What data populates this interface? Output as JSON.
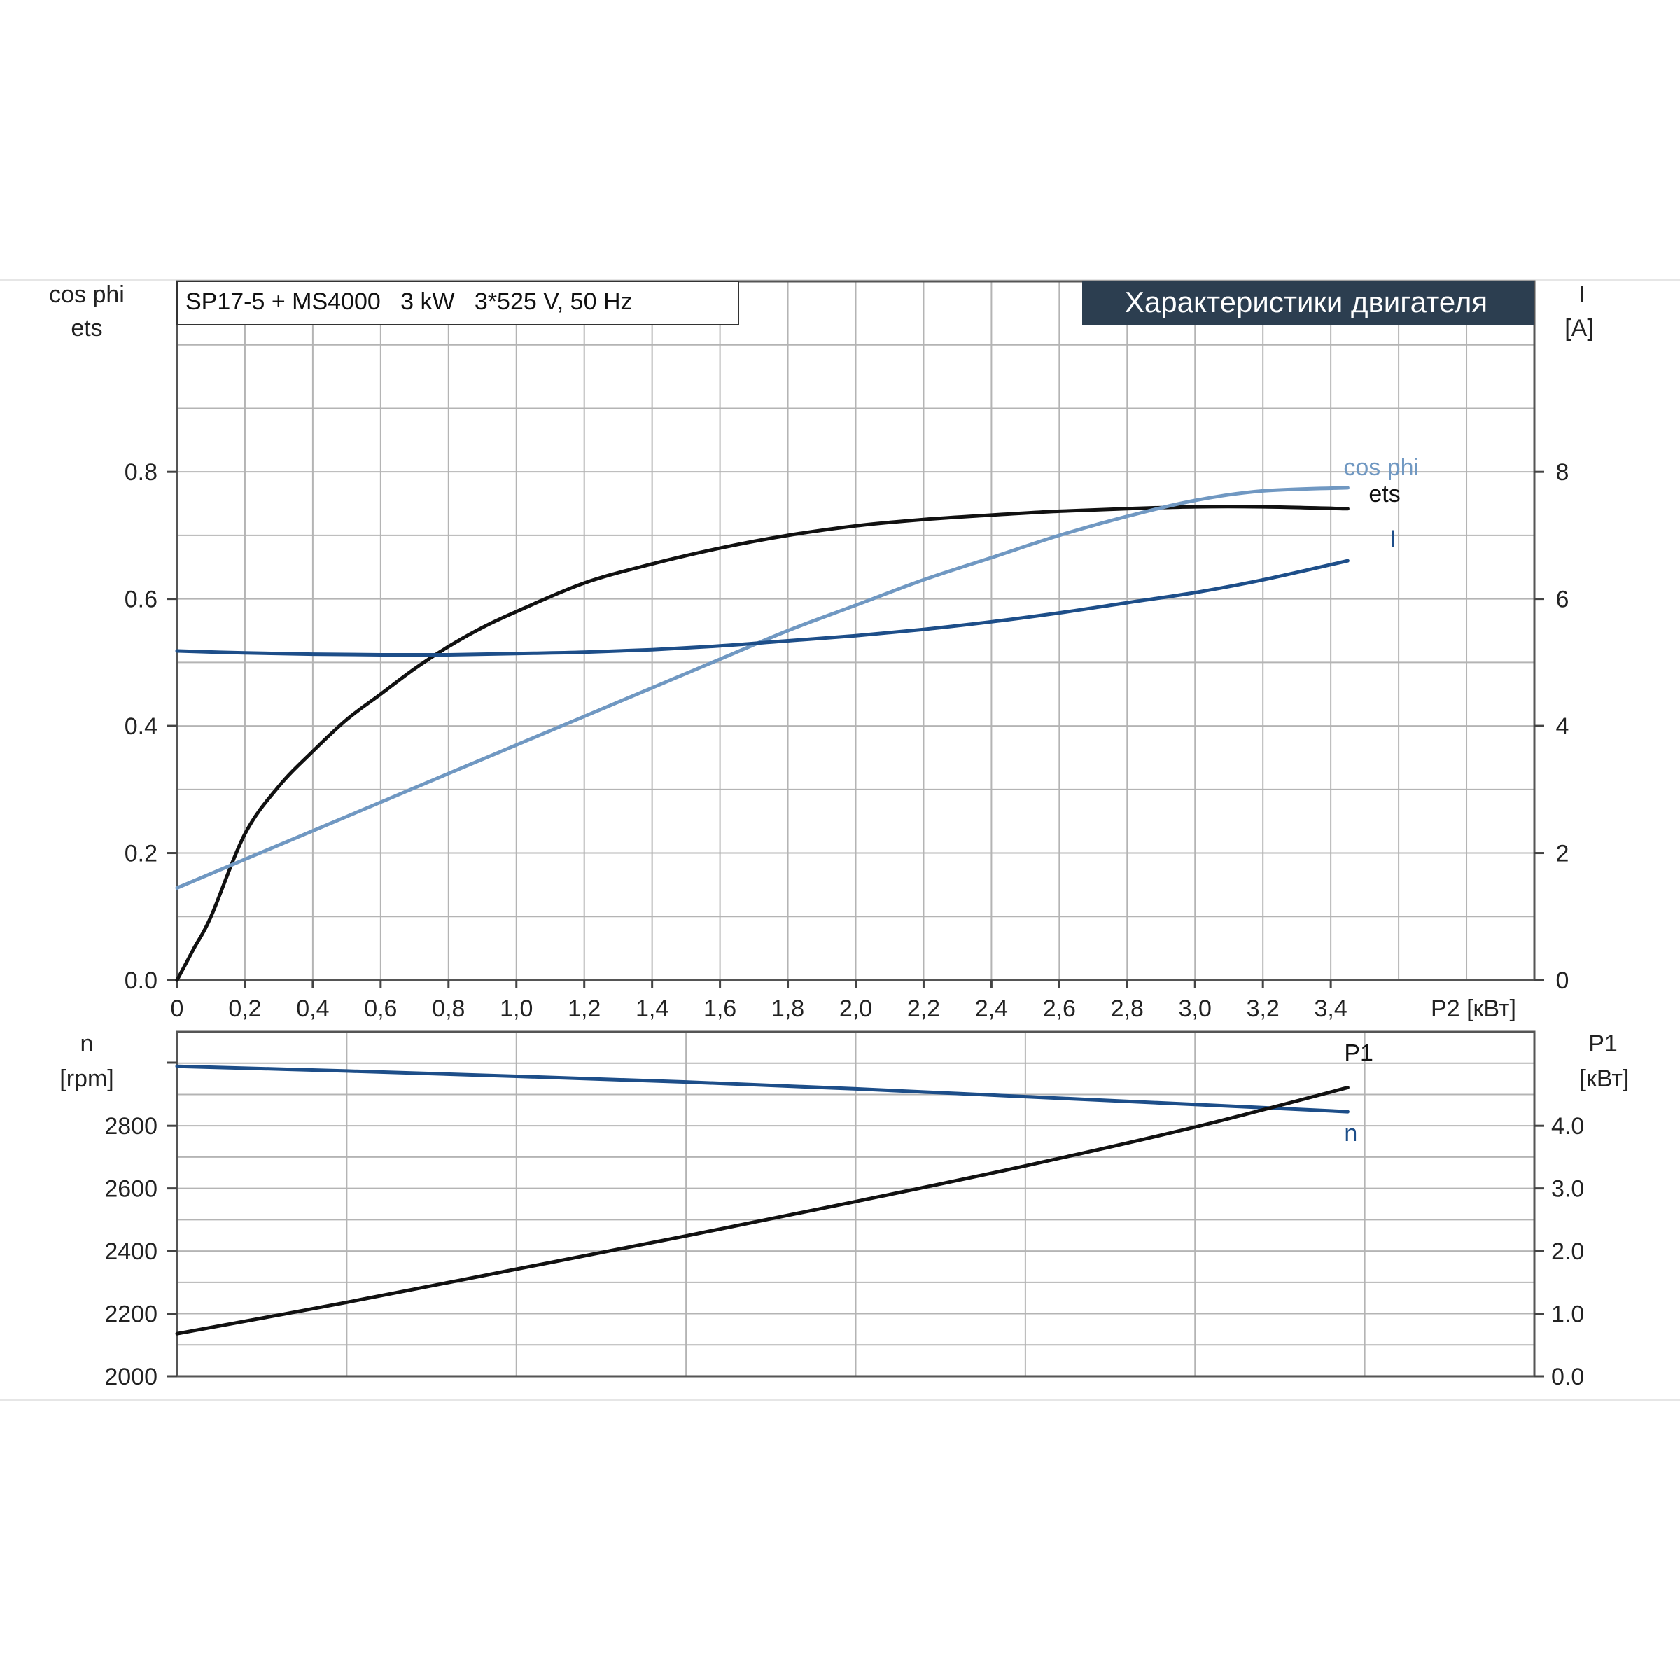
{
  "colors": {
    "black": "#111111",
    "dark_blue": "#1d4e89",
    "light_blue": "#7098c2",
    "title_bg": "#2c3e50",
    "title_fg": "#ffffff",
    "grid": "#b4b4b4"
  },
  "header": {
    "model_label": "SP17-5 + MS4000   3 kW   3*525 V, 50 Hz",
    "title": "Характеристики двигателя"
  },
  "chart_data": [
    {
      "type": "line",
      "name": "top",
      "xlabel": "P2 [кВт]",
      "x_ticks": [
        "0",
        "0,2",
        "0,4",
        "0,6",
        "0,8",
        "1,0",
        "1,2",
        "1,4",
        "1,6",
        "1,8",
        "2,0",
        "2,2",
        "2,4",
        "2,6",
        "2,8",
        "3,0",
        "3,2",
        "3,4"
      ],
      "xlim": [
        0,
        4.0
      ],
      "y_left": {
        "label_line1": "cos phi",
        "label_line2": "ets",
        "ticks": [
          "0.0",
          "0.2",
          "0.4",
          "0.6",
          "0.8"
        ],
        "ylim": [
          0,
          1.1
        ]
      },
      "y_right": {
        "label_line1": "I",
        "label_line2": "[A]",
        "ticks": [
          "0",
          "2",
          "4",
          "6",
          "8"
        ],
        "ylim": [
          0,
          11
        ]
      },
      "grid": true,
      "series": [
        {
          "name": "ets",
          "axis": "left",
          "color": "#111111",
          "x": [
            0,
            0.05,
            0.1,
            0.2,
            0.3,
            0.4,
            0.5,
            0.6,
            0.7,
            0.8,
            0.9,
            1.0,
            1.2,
            1.4,
            1.6,
            1.8,
            2.0,
            2.2,
            2.4,
            2.6,
            2.8,
            3.0,
            3.2,
            3.45
          ],
          "y": [
            0.0,
            0.05,
            0.1,
            0.23,
            0.305,
            0.36,
            0.41,
            0.45,
            0.49,
            0.525,
            0.555,
            0.58,
            0.625,
            0.655,
            0.68,
            0.7,
            0.715,
            0.725,
            0.732,
            0.738,
            0.742,
            0.745,
            0.745,
            0.742
          ]
        },
        {
          "name": "cos phi",
          "axis": "left",
          "color": "#7098c2",
          "x": [
            0,
            0.2,
            0.4,
            0.6,
            0.8,
            1.0,
            1.2,
            1.4,
            1.6,
            1.8,
            2.0,
            2.2,
            2.4,
            2.6,
            2.8,
            3.0,
            3.2,
            3.45
          ],
          "y": [
            0.145,
            0.19,
            0.235,
            0.28,
            0.325,
            0.37,
            0.415,
            0.46,
            0.505,
            0.55,
            0.59,
            0.63,
            0.665,
            0.7,
            0.73,
            0.755,
            0.77,
            0.775
          ]
        },
        {
          "name": "I",
          "axis": "right",
          "color": "#1d4e89",
          "x": [
            0,
            0.2,
            0.4,
            0.6,
            0.8,
            1.0,
            1.2,
            1.4,
            1.6,
            1.8,
            2.0,
            2.2,
            2.4,
            2.6,
            2.8,
            3.0,
            3.2,
            3.45
          ],
          "y": [
            5.18,
            5.15,
            5.13,
            5.12,
            5.12,
            5.14,
            5.16,
            5.2,
            5.26,
            5.34,
            5.42,
            5.52,
            5.64,
            5.78,
            5.94,
            6.1,
            6.3,
            6.6
          ]
        }
      ]
    },
    {
      "type": "line",
      "name": "bottom",
      "xlim": [
        0,
        4.0
      ],
      "y_left": {
        "label_line1": "n",
        "label_line2": "[rpm]",
        "ticks": [
          "2000",
          "2200",
          "2400",
          "2600",
          "2800"
        ],
        "ylim": [
          2000,
          3100
        ]
      },
      "y_right": {
        "label_line1": "P1",
        "label_line2": "[кВт]",
        "ticks": [
          "0.0",
          "1.0",
          "2.0",
          "3.0",
          "4.0"
        ],
        "ylim": [
          0,
          5.5
        ]
      },
      "grid": true,
      "series": [
        {
          "name": "n",
          "axis": "left",
          "color": "#1d4e89",
          "x": [
            0,
            0.5,
            1.0,
            1.5,
            2.0,
            2.5,
            3.0,
            3.45
          ],
          "y": [
            2990,
            2975,
            2958,
            2940,
            2918,
            2893,
            2868,
            2845
          ]
        },
        {
          "name": "P1",
          "axis": "right",
          "color": "#111111",
          "x": [
            0,
            0.5,
            1.0,
            1.5,
            2.0,
            2.5,
            3.0,
            3.45
          ],
          "y": [
            0.68,
            1.18,
            1.71,
            2.24,
            2.79,
            3.36,
            3.98,
            4.61
          ]
        }
      ]
    }
  ]
}
